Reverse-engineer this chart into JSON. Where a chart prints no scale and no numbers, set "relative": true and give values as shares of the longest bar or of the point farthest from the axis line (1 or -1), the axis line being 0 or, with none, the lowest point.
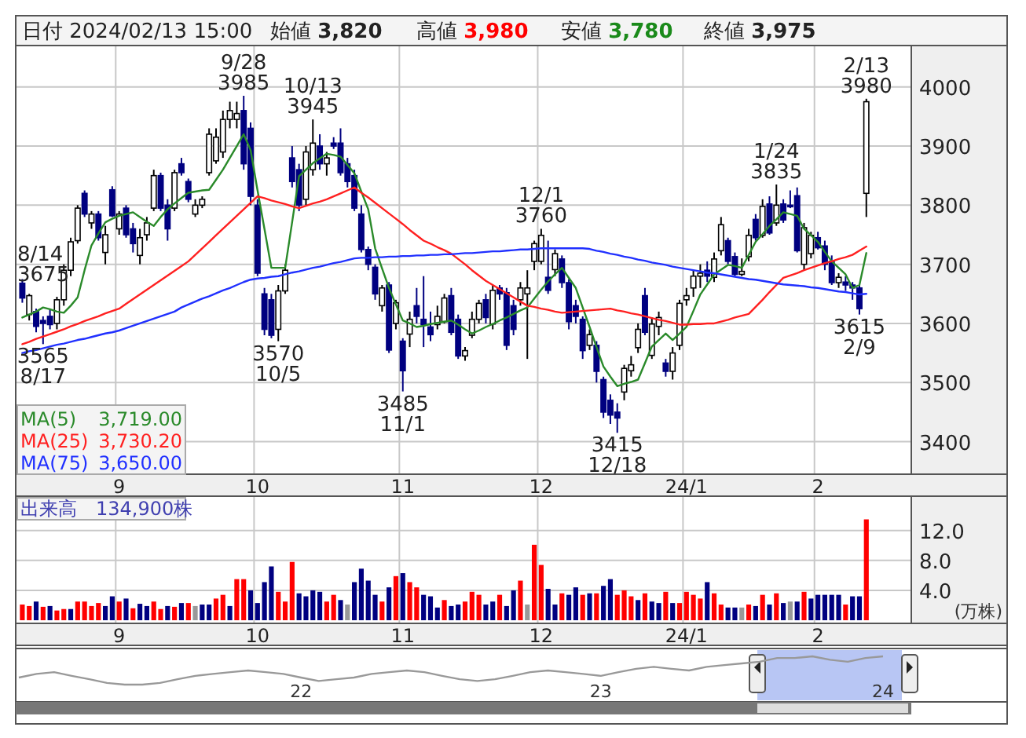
{
  "chart_data": [
    {
      "type": "candlestick",
      "title": "日付 2024/02/13 15:00",
      "grid": true,
      "legend": "bottom left",
      "colors": [
        "#000080",
        "#ffffff",
        "#000080",
        "#000080",
        "#000080",
        "#ffffff",
        "#ffffff",
        "#ffffff",
        "#ffffff",
        "#000080",
        "#ffffff",
        "#000080",
        "#ffffff",
        "#000080",
        "#ffffff",
        "#000080",
        "#000080",
        "#ffffff",
        "#ffffff",
        "#ffffff",
        "#000080",
        "#000080",
        "#ffffff",
        "#000080",
        "#000080",
        "#ffffff",
        "#ffffff",
        "#ffffff",
        "#ffffff",
        "#ffffff",
        "#ffffff",
        "#ffffff",
        "#000080",
        "#000080",
        "#000080",
        "#000080",
        "#000080",
        "#ffffff",
        "#ffffff",
        "#000080",
        "#000080",
        "#ffffff",
        "#ffffff",
        "#000080",
        "#ffffff",
        "#000080",
        "#000080",
        "#000080",
        "#000080",
        "#000080",
        "#000080",
        "#000080",
        "#ffffff",
        "#000080",
        "#ffffff",
        "#000080",
        "#ffffff",
        "#000080",
        "#000080",
        "#000080",
        "#ffffff",
        "#ffffff",
        "#000080",
        "#000080",
        "#ffffff",
        "#ffffff",
        "#ffffff",
        "#000080",
        "#ffffff",
        "#000080",
        "#000080",
        "#000080",
        "#ffffff",
        "#ffffff",
        "#ffffff",
        "#ffffff",
        "#000080",
        "#ffffff",
        "#000080",
        "#000080",
        "#000080",
        "#000080",
        "#ffffff",
        "#000080",
        "#000080",
        "#000080",
        "#000080",
        "#ffffff",
        "#ffffff",
        "#ffffff",
        "#000080",
        "#ffffff",
        "#ffffff",
        "#000080",
        "#ffffff",
        "#ffffff",
        "#ffffff",
        "#ffffff",
        "#ffffff",
        "#000080",
        "#ffffff",
        "#ffffff",
        "#000080",
        "#000080",
        "#ffffff",
        "#ffffff",
        "#000080",
        "#ffffff",
        "#000080",
        "#ffffff",
        "#000080",
        "#000080",
        "#000080",
        "#ffffff",
        "#ffffff",
        "#000080",
        "#000080",
        "#000080",
        "#ffffff",
        "#000080",
        "#000080",
        "#000080",
        "#ffffff"
      ],
      "categories": [
        null,
        null,
        null,
        null,
        null,
        null,
        null,
        null,
        null,
        null,
        null,
        null,
        null,
        null,
        "9",
        null,
        null,
        null,
        null,
        null,
        null,
        null,
        null,
        null,
        null,
        null,
        null,
        null,
        null,
        null,
        null,
        null,
        null,
        null,
        "10",
        null,
        null,
        null,
        null,
        null,
        null,
        null,
        null,
        null,
        null,
        null,
        null,
        null,
        null,
        null,
        null,
        null,
        null,
        null,
        null,
        "11",
        null,
        null,
        null,
        null,
        null,
        null,
        null,
        null,
        null,
        null,
        null,
        null,
        null,
        null,
        null,
        null,
        null,
        null,
        null,
        "12",
        null,
        null,
        null,
        null,
        null,
        null,
        null,
        null,
        null,
        null,
        null,
        null,
        null,
        null,
        null,
        null,
        null,
        null,
        null,
        null,
        "24/1",
        null,
        null,
        null,
        null,
        null,
        null,
        null,
        null,
        null,
        null,
        null,
        null,
        null,
        null,
        null,
        null,
        null,
        null,
        "2",
        null,
        null,
        null,
        null,
        null,
        null,
        null
      ],
      "ylim": [
        3345,
        4070
      ],
      "yticks": [
        3400,
        3500,
        3600,
        3700,
        3800,
        3900,
        4000
      ],
      "ohlc": [
        [
          3668,
          3675,
          3635,
          3643
        ],
        [
          3615,
          3650,
          3605,
          3647
        ],
        [
          3620,
          3625,
          3585,
          3595
        ],
        [
          3605,
          3612,
          3565,
          3600
        ],
        [
          3612,
          3625,
          3590,
          3598
        ],
        [
          3600,
          3645,
          3590,
          3640
        ],
        [
          3640,
          3700,
          3630,
          3690
        ],
        [
          3690,
          3745,
          3680,
          3738
        ],
        [
          3740,
          3800,
          3735,
          3795
        ],
        [
          3820,
          3825,
          3780,
          3785
        ],
        [
          3770,
          3790,
          3760,
          3785
        ],
        [
          3785,
          3790,
          3740,
          3745
        ],
        [
          3720,
          3765,
          3700,
          3750
        ],
        [
          3826,
          3832,
          3780,
          3782
        ],
        [
          3760,
          3790,
          3750,
          3785
        ],
        [
          3795,
          3800,
          3745,
          3750
        ],
        [
          3760,
          3770,
          3720,
          3735
        ],
        [
          3715,
          3760,
          3700,
          3745
        ],
        [
          3750,
          3780,
          3740,
          3770
        ],
        [
          3795,
          3860,
          3790,
          3850
        ],
        [
          3850,
          3855,
          3790,
          3795
        ],
        [
          3800,
          3810,
          3740,
          3760
        ],
        [
          3795,
          3860,
          3790,
          3855
        ],
        [
          3870,
          3880,
          3850,
          3855
        ],
        [
          3840,
          3845,
          3805,
          3810
        ],
        [
          3785,
          3810,
          3780,
          3800
        ],
        [
          3800,
          3815,
          3795,
          3810
        ],
        [
          3855,
          3930,
          3850,
          3920
        ],
        [
          3875,
          3930,
          3870,
          3915
        ],
        [
          3890,
          3960,
          3880,
          3945
        ],
        [
          3945,
          3975,
          3930,
          3960
        ],
        [
          3945,
          3975,
          3930,
          3955
        ],
        [
          3960,
          3985,
          3860,
          3870
        ],
        [
          3930,
          3940,
          3800,
          3815
        ],
        [
          3800,
          3810,
          3680,
          3685
        ],
        [
          3650,
          3660,
          3580,
          3590
        ],
        [
          3640,
          3650,
          3575,
          3580
        ],
        [
          3590,
          3665,
          3570,
          3655
        ],
        [
          3655,
          3700,
          3650,
          3690
        ],
        [
          3880,
          3900,
          3830,
          3840
        ],
        [
          3860,
          3870,
          3790,
          3800
        ],
        [
          3810,
          3900,
          3800,
          3890
        ],
        [
          3860,
          3945,
          3850,
          3905
        ],
        [
          3900,
          3920,
          3860,
          3870
        ],
        [
          3870,
          3890,
          3850,
          3880
        ],
        [
          3905,
          3915,
          3895,
          3900
        ],
        [
          3905,
          3930,
          3850,
          3855
        ],
        [
          3870,
          3880,
          3830,
          3840
        ],
        [
          3850,
          3860,
          3790,
          3795
        ],
        [
          3785,
          3800,
          3720,
          3725
        ],
        [
          3725,
          3730,
          3690,
          3700
        ],
        [
          3695,
          3700,
          3640,
          3650
        ],
        [
          3630,
          3665,
          3620,
          3660
        ],
        [
          3665,
          3670,
          3550,
          3555
        ],
        [
          3600,
          3640,
          3590,
          3635
        ],
        [
          3570,
          3575,
          3485,
          3520
        ],
        [
          3582,
          3620,
          3560,
          3607
        ],
        [
          3630,
          3660,
          3600,
          3612
        ],
        [
          3607,
          3680,
          3560,
          3598
        ],
        [
          3594,
          3620,
          3570,
          3581
        ],
        [
          3598,
          3630,
          3590,
          3612
        ],
        [
          3603,
          3650,
          3600,
          3643
        ],
        [
          3647,
          3660,
          3580,
          3585
        ],
        [
          3607,
          3615,
          3540,
          3545
        ],
        [
          3545,
          3560,
          3537,
          3554
        ],
        [
          3580,
          3620,
          3575,
          3607
        ],
        [
          3607,
          3640,
          3600,
          3634
        ],
        [
          3640,
          3650,
          3600,
          3610
        ],
        [
          3599,
          3665,
          3590,
          3656
        ],
        [
          3660,
          3665,
          3640,
          3650
        ],
        [
          3652,
          3660,
          3555,
          3563
        ],
        [
          3630,
          3640,
          3580,
          3590
        ],
        [
          3640,
          3670,
          3630,
          3660
        ],
        [
          3650,
          3690,
          3540,
          3660
        ],
        [
          3705,
          3740,
          3690,
          3735
        ],
        [
          3705,
          3760,
          3700,
          3749
        ],
        [
          3678,
          3740,
          3650,
          3656
        ],
        [
          3691,
          3725,
          3680,
          3718
        ],
        [
          3709,
          3715,
          3660,
          3669
        ],
        [
          3669,
          3675,
          3590,
          3603
        ],
        [
          3630,
          3640,
          3600,
          3612
        ],
        [
          3607,
          3612,
          3540,
          3554
        ],
        [
          3563,
          3590,
          3555,
          3581
        ],
        [
          3563,
          3570,
          3500,
          3519
        ],
        [
          3505,
          3510,
          3440,
          3450
        ],
        [
          3470,
          3480,
          3430,
          3445
        ],
        [
          3450,
          3465,
          3415,
          3440
        ],
        [
          3484,
          3530,
          3470,
          3524
        ],
        [
          3520,
          3545,
          3510,
          3530
        ],
        [
          3559,
          3600,
          3550,
          3590
        ],
        [
          3647,
          3660,
          3580,
          3585
        ],
        [
          3546,
          3610,
          3540,
          3599
        ],
        [
          3595,
          3620,
          3580,
          3610
        ],
        [
          3533,
          3540,
          3510,
          3519
        ],
        [
          3519,
          3560,
          3505,
          3550
        ],
        [
          3563,
          3640,
          3555,
          3634
        ],
        [
          3640,
          3660,
          3630,
          3647
        ],
        [
          3660,
          3690,
          3645,
          3680
        ],
        [
          3680,
          3700,
          3660,
          3685
        ],
        [
          3690,
          3705,
          3670,
          3680
        ],
        [
          3678,
          3720,
          3670,
          3709
        ],
        [
          3723,
          3780,
          3715,
          3767
        ],
        [
          3740,
          3745,
          3700,
          3705
        ],
        [
          3713,
          3720,
          3680,
          3683
        ],
        [
          3683,
          3710,
          3680,
          3688
        ],
        [
          3713,
          3760,
          3705,
          3749
        ],
        [
          3776,
          3785,
          3740,
          3745
        ],
        [
          3749,
          3810,
          3745,
          3798
        ],
        [
          3802,
          3815,
          3750,
          3753
        ],
        [
          3770,
          3835,
          3765,
          3800
        ],
        [
          3802,
          3810,
          3770,
          3775
        ],
        [
          3800,
          3825,
          3795,
          3799
        ],
        [
          3816,
          3830,
          3720,
          3723
        ],
        [
          3700,
          3770,
          3690,
          3762
        ],
        [
          3718,
          3755,
          3710,
          3749
        ],
        [
          3745,
          3755,
          3725,
          3728
        ],
        [
          3731,
          3740,
          3690,
          3700
        ],
        [
          3705,
          3715,
          3665,
          3669
        ],
        [
          3669,
          3685,
          3660,
          3678
        ],
        [
          3670,
          3680,
          3655,
          3665
        ],
        [
          3665,
          3670,
          3640,
          3660
        ],
        [
          3660,
          3665,
          3615,
          3625
        ],
        [
          3820,
          3980,
          3780,
          3975
        ]
      ],
      "series": [
        {
          "type": "line",
          "name": "MA(5)",
          "color": "#2a8a2a",
          "values": [
            3610,
            3615,
            3620,
            3627,
            3624,
            3620,
            3618,
            3630,
            3644,
            3690,
            3732,
            3752,
            3771,
            3777,
            3782,
            3785,
            3788,
            3780,
            3772,
            3765,
            3780,
            3793,
            3803,
            3812,
            3821,
            3823,
            3825,
            3826,
            3843,
            3860,
            3880,
            3900,
            3920,
            3893,
            3825,
            3760,
            3694,
            3694,
            3694,
            3771,
            3849,
            3860,
            3871,
            3879,
            3887,
            3885,
            3882,
            3868,
            3854,
            3823,
            3793,
            3727,
            3693,
            3660,
            3632,
            3605,
            3600,
            3594,
            3596,
            3599,
            3601,
            3603,
            3605,
            3598,
            3590,
            3583,
            3588,
            3594,
            3599,
            3605,
            3610,
            3616,
            3622,
            3627,
            3642,
            3657,
            3671,
            3683,
            3694,
            3677,
            3660,
            3627,
            3594,
            3560,
            3527,
            3510,
            3494,
            3498,
            3501,
            3505,
            3533,
            3561,
            3572,
            3583,
            3572,
            3583,
            3594,
            3621,
            3649,
            3666,
            3683,
            3691,
            3699,
            3697,
            3694,
            3716,
            3738,
            3751,
            3765,
            3776,
            3788,
            3785,
            3782,
            3760,
            3749,
            3738,
            3721,
            3705,
            3694,
            3683,
            3660,
            3665,
            3719
          ]
        },
        {
          "type": "line",
          "name": "MA(25)",
          "color": "#ff2020",
          "values": [
            3565,
            3569,
            3574,
            3578,
            3582,
            3586,
            3590,
            3595,
            3599,
            3604,
            3608,
            3612,
            3617,
            3621,
            3625,
            3633,
            3641,
            3649,
            3657,
            3665,
            3673,
            3681,
            3689,
            3697,
            3705,
            3716,
            3727,
            3738,
            3749,
            3760,
            3771,
            3782,
            3793,
            3804,
            3815,
            3812,
            3808,
            3805,
            3802,
            3798,
            3795,
            3799,
            3803,
            3806,
            3810,
            3815,
            3820,
            3825,
            3830,
            3821,
            3813,
            3804,
            3795,
            3786,
            3777,
            3768,
            3758,
            3749,
            3740,
            3735,
            3729,
            3724,
            3718,
            3709,
            3700,
            3690,
            3681,
            3672,
            3665,
            3658,
            3651,
            3644,
            3637,
            3630,
            3628,
            3625,
            3623,
            3620,
            3618,
            3619,
            3620,
            3621,
            3622,
            3623,
            3624,
            3625,
            3622,
            3620,
            3617,
            3615,
            3612,
            3609,
            3606,
            3604,
            3601,
            3598,
            3598,
            3599,
            3599,
            3600,
            3600,
            3603,
            3606,
            3610,
            3613,
            3616,
            3628,
            3640,
            3653,
            3665,
            3677,
            3681,
            3685,
            3690,
            3694,
            3698,
            3702,
            3705,
            3709,
            3712,
            3716,
            3723,
            3730
          ]
        },
        {
          "type": "line",
          "name": "MA(75)",
          "color": "#2030ff",
          "values": [
            3550,
            3553,
            3555,
            3558,
            3561,
            3564,
            3566,
            3569,
            3572,
            3574,
            3577,
            3580,
            3583,
            3585,
            3588,
            3592,
            3596,
            3600,
            3604,
            3608,
            3612,
            3616,
            3620,
            3627,
            3632,
            3637,
            3642,
            3646,
            3651,
            3656,
            3660,
            3665,
            3670,
            3674,
            3676,
            3677,
            3679,
            3680,
            3683,
            3686,
            3688,
            3691,
            3694,
            3696,
            3699,
            3702,
            3704,
            3707,
            3710,
            3711,
            3711,
            3712,
            3712,
            3713,
            3713,
            3714,
            3714,
            3715,
            3715,
            3716,
            3716,
            3717,
            3717,
            3718,
            3719,
            3719,
            3720,
            3721,
            3722,
            3722,
            3723,
            3724,
            3725,
            3725,
            3726,
            3727,
            3727,
            3727,
            3727,
            3727,
            3727,
            3727,
            3726,
            3723,
            3721,
            3718,
            3716,
            3713,
            3711,
            3708,
            3706,
            3703,
            3701,
            3699,
            3696,
            3694,
            3692,
            3690,
            3688,
            3686,
            3685,
            3683,
            3681,
            3679,
            3677,
            3675,
            3674,
            3672,
            3670,
            3668,
            3666,
            3665,
            3664,
            3663,
            3661,
            3660,
            3658,
            3656,
            3654,
            3653,
            3651,
            3649,
            3650
          ]
        }
      ],
      "annotations": [
        "始値 **3,820**",
        "高値 **3,980**",
        "安値 **3,780**",
        "終値 **3,975**",
        "3,719.00",
        "3,730.20",
        "3,650.00",
        "8/14\n3675",
        {
          "text": "3565\n8/17",
          "y": 3565
        },
        {
          "text": "9/28\n3985",
          "y": 3985
        },
        {
          "text": "3570\n10/5",
          "y": 3570
        },
        {
          "text": "10/13\n3945",
          "y": 3945
        },
        {
          "text": "3485\n11/1",
          "y": 3485
        },
        {
          "text": "12/1\n3760",
          "y": 3760
        },
        {
          "text": "3415\n12/18",
          "y": 3415
        },
        {
          "text": "1/24\n3835",
          "y": 3835
        },
        {
          "text": "3615\n2/9",
          "y": 3615
        },
        {
          "text": "2/13\n3980",
          "y": 3980
        }
      ]
    },
    {
      "type": "bar",
      "grid": true,
      "ylabel": "(万株)",
      "ylim": [
        0,
        16.6
      ],
      "yticks": [
        {
          "value": 4,
          "label": "4.0"
        },
        {
          "value": 8,
          "label": "8.0"
        },
        {
          "value": 12,
          "label": "12.0"
        }
      ],
      "categories": [
        null,
        null,
        null,
        null,
        null,
        null,
        null,
        null,
        null,
        null,
        null,
        null,
        null,
        null,
        "9",
        null,
        null,
        null,
        null,
        null,
        null,
        null,
        null,
        null,
        null,
        null,
        null,
        null,
        null,
        null,
        null,
        null,
        null,
        null,
        "10",
        null,
        null,
        null,
        null,
        null,
        null,
        null,
        null,
        null,
        null,
        null,
        null,
        null,
        null,
        null,
        null,
        null,
        null,
        null,
        null,
        "11",
        null,
        null,
        null,
        null,
        null,
        null,
        null,
        null,
        null,
        null,
        null,
        null,
        null,
        null,
        null,
        null,
        null,
        null,
        null,
        "12",
        null,
        null,
        null,
        null,
        null,
        null,
        null,
        null,
        null,
        null,
        null,
        null,
        null,
        null,
        null,
        null,
        null,
        null,
        null,
        null,
        "24/1",
        null,
        null,
        null,
        null,
        null,
        null,
        null,
        null,
        null,
        null,
        null,
        null,
        null,
        null,
        null,
        null,
        null,
        null,
        "2",
        null,
        null,
        null,
        null,
        null,
        null,
        null
      ],
      "values": [
        2.1,
        1.9,
        2.5,
        1.8,
        1.9,
        1.3,
        1.5,
        1.5,
        2.5,
        2.5,
        1.9,
        2.3,
        1.9,
        3.2,
        2.5,
        2.9,
        1.6,
        2.2,
        1.9,
        2.5,
        1.5,
        1.9,
        1.8,
        2.3,
        2.3,
        1.9,
        2.1,
        2.1,
        2.9,
        3.4,
        1.9,
        5.5,
        5.5,
        4.0,
        2.3,
        5.1,
        7.2,
        3.8,
        2.5,
        7.8,
        3.6,
        3.2,
        4.0,
        3.8,
        2.5,
        3.4,
        2.7,
        2.1,
        5.1,
        6.9,
        5.3,
        3.4,
        2.5,
        4.4,
        5.9,
        6.3,
        5.1,
        4.4,
        3.4,
        3.2,
        1.7,
        2.7,
        1.9,
        2.1,
        2.5,
        3.8,
        3.4,
        2.1,
        2.5,
        3.4,
        1.9,
        4.0,
        5.3,
        2.1,
        10.1,
        7.4,
        4.2,
        2.1,
        3.6,
        3.4,
        4.4,
        3.4,
        3.6,
        3.6,
        4.6,
        5.5,
        3.4,
        4.0,
        3.2,
        2.7,
        3.6,
        2.5,
        2.3,
        3.8,
        2.3,
        2.3,
        3.8,
        3.4,
        2.9,
        5.1,
        3.6,
        2.1,
        1.7,
        1.7,
        1.7,
        2.1,
        1.9,
        3.4,
        2.1,
        3.6,
        2.3,
        2.5,
        2.5,
        3.8,
        2.9,
        3.4,
        3.4,
        3.4,
        3.4,
        2.1,
        3.2,
        3.2,
        13.5
      ],
      "colors": [
        "#ff0000",
        "#ff0000",
        "#000080",
        "#ff0000",
        "#000080",
        "#ff0000",
        "#ff0000",
        "#000080",
        "#ff0000",
        "#ff0000",
        "#ff0000",
        "#ff0000",
        "#000080",
        "#000080",
        "#ff0000",
        "#000080",
        "#ff0000",
        "#000080",
        "#000080",
        "#ff0000",
        "#ff0000",
        "#000080",
        "#ff0000",
        "#000080",
        "#ff0000",
        "#999999",
        "#000080",
        "#000080",
        "#ff0000",
        "#ff0000",
        "#000080",
        "#ff0000",
        "#ff0000",
        "#000080",
        "#000080",
        "#000080",
        "#000080",
        "#ff0000",
        "#ff0000",
        "#ff0000",
        "#000080",
        "#000080",
        "#000080",
        "#000080",
        "#ff0000",
        "#ff0000",
        "#000080",
        "#999999",
        "#000080",
        "#000080",
        "#000080",
        "#000080",
        "#ff0000",
        "#000080",
        "#ff0000",
        "#000080",
        "#ff0000",
        "#ff0000",
        "#000080",
        "#000080",
        "#000080",
        "#ff0000",
        "#000080",
        "#000080",
        "#ff0000",
        "#ff0000",
        "#ff0000",
        "#000080",
        "#000080",
        "#ff0000",
        "#000080",
        "#000080",
        "#ff0000",
        "#999999",
        "#ff0000",
        "#ff0000",
        "#000080",
        "#000080",
        "#ff0000",
        "#000080",
        "#000080",
        "#ff0000",
        "#000080",
        "#ff0000",
        "#000080",
        "#000080",
        "#ff0000",
        "#ff0000",
        "#ff0000",
        "#000080",
        "#ff0000",
        "#000080",
        "#000080",
        "#ff0000",
        "#000080",
        "#ff0000",
        "#ff0000",
        "#ff0000",
        "#ff0000",
        "#000080",
        "#ff0000",
        "#ff0000",
        "#000080",
        "#000080",
        "#999999",
        "#ff0000",
        "#000080",
        "#ff0000",
        "#000080",
        "#ff0000",
        "#000080",
        "#999999",
        "#000080",
        "#ff0000",
        "#000080",
        "#000080",
        "#000080",
        "#000080",
        "#000080",
        "#ff0000",
        "#000080",
        "#000080",
        "#ff0000"
      ],
      "annotations": [
        "出来高　134,900株"
      ]
    },
    {
      "type": "line",
      "relative": true,
      "color": "#999999",
      "categories": [
        null,
        null,
        null,
        null,
        null,
        null,
        null,
        null,
        null,
        null,
        null,
        null,
        null,
        null,
        null,
        null,
        "22",
        null,
        null,
        null,
        null,
        null,
        null,
        null,
        null,
        null,
        null,
        null,
        null,
        null,
        null,
        null,
        null,
        "23",
        null,
        null,
        null,
        null,
        null,
        null,
        null,
        null,
        null,
        null,
        null,
        null,
        null,
        null,
        null,
        "24"
      ],
      "values": [
        0.25,
        0.38,
        0.44,
        0.31,
        0.19,
        0.06,
        0,
        0,
        0.06,
        0.19,
        0.31,
        0.38,
        0.44,
        0.5,
        0.44,
        0.38,
        0.25,
        0.13,
        0.19,
        0.25,
        0.38,
        0.44,
        0.5,
        0.44,
        0.31,
        0.19,
        0.13,
        0.19,
        0.31,
        0.44,
        0.5,
        0.44,
        0.38,
        0.31,
        0.44,
        0.56,
        0.63,
        0.56,
        0.5,
        0.63,
        0.69,
        0.75,
        0.81,
        0.94,
        0.94,
        1,
        0.88,
        0.81,
        0.94,
        1
      ]
    }
  ]
}
